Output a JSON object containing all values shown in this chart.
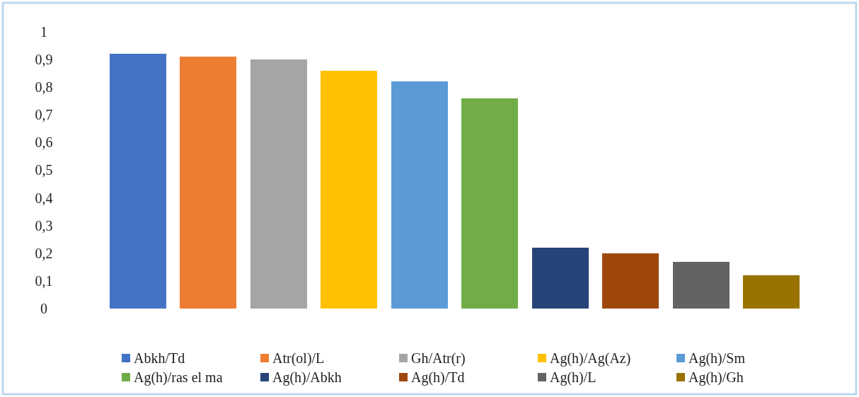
{
  "chart_data": {
    "type": "bar",
    "categories": [
      null,
      null,
      null,
      null,
      null,
      null,
      null,
      null,
      null,
      null
    ],
    "stacked": true,
    "series": [
      {
        "name": "Abkh/Td",
        "color": "#4472c4",
        "values": [
          0.92,
          null,
          null,
          null,
          null,
          null,
          null,
          null,
          null,
          null
        ]
      },
      {
        "name": "Atr(ol)/L",
        "color": "#ed7d31",
        "values": [
          null,
          0.91,
          null,
          null,
          null,
          null,
          null,
          null,
          null,
          null
        ]
      },
      {
        "name": "Gh/Atr(r)",
        "color": "#a5a5a5",
        "values": [
          null,
          null,
          0.9,
          null,
          null,
          null,
          null,
          null,
          null,
          null
        ]
      },
      {
        "name": "Ag(h)/Ag(Az)",
        "color": "#ffc000",
        "values": [
          null,
          null,
          null,
          0.86,
          null,
          null,
          null,
          null,
          null,
          null
        ]
      },
      {
        "name": "Ag(h)/Sm",
        "color": "#5b9bd5",
        "values": [
          null,
          null,
          null,
          null,
          0.82,
          null,
          null,
          null,
          null,
          null
        ]
      },
      {
        "name": "Ag(h)/ras el ma",
        "color": "#70ad47",
        "values": [
          null,
          null,
          null,
          null,
          null,
          0.76,
          null,
          null,
          null,
          null
        ]
      },
      {
        "name": "Ag(h)/Abkh",
        "color": "#264478",
        "values": [
          null,
          null,
          null,
          null,
          null,
          null,
          0.22,
          null,
          null,
          null
        ]
      },
      {
        "name": "Ag(h)/Td",
        "color": "#9e480e",
        "values": [
          null,
          null,
          null,
          null,
          null,
          null,
          null,
          0.2,
          null,
          null
        ]
      },
      {
        "name": "Ag(h)/L",
        "color": "#636363",
        "values": [
          null,
          null,
          null,
          null,
          null,
          null,
          null,
          null,
          0.17,
          null
        ]
      },
      {
        "name": "Ag(h)/Gh",
        "color": "#997300",
        "values": [
          null,
          null,
          null,
          null,
          null,
          null,
          null,
          null,
          null,
          0.12
        ]
      }
    ],
    "ylim": [
      0,
      1
    ],
    "yticks": [
      0,
      {
        "value": 0.1,
        "label": "0,1"
      },
      {
        "value": 0.2,
        "label": "0,2"
      },
      {
        "value": 0.3,
        "label": "0,3"
      },
      {
        "value": 0.4,
        "label": "0,4"
      },
      {
        "value": 0.5,
        "label": "0,5"
      },
      {
        "value": 0.6,
        "label": "0,6"
      },
      {
        "value": 0.7,
        "label": "0,7"
      },
      {
        "value": 0.8,
        "label": "0,8"
      },
      {
        "value": 0.9,
        "label": "0,9"
      },
      1
    ],
    "legend": "bottom"
  }
}
